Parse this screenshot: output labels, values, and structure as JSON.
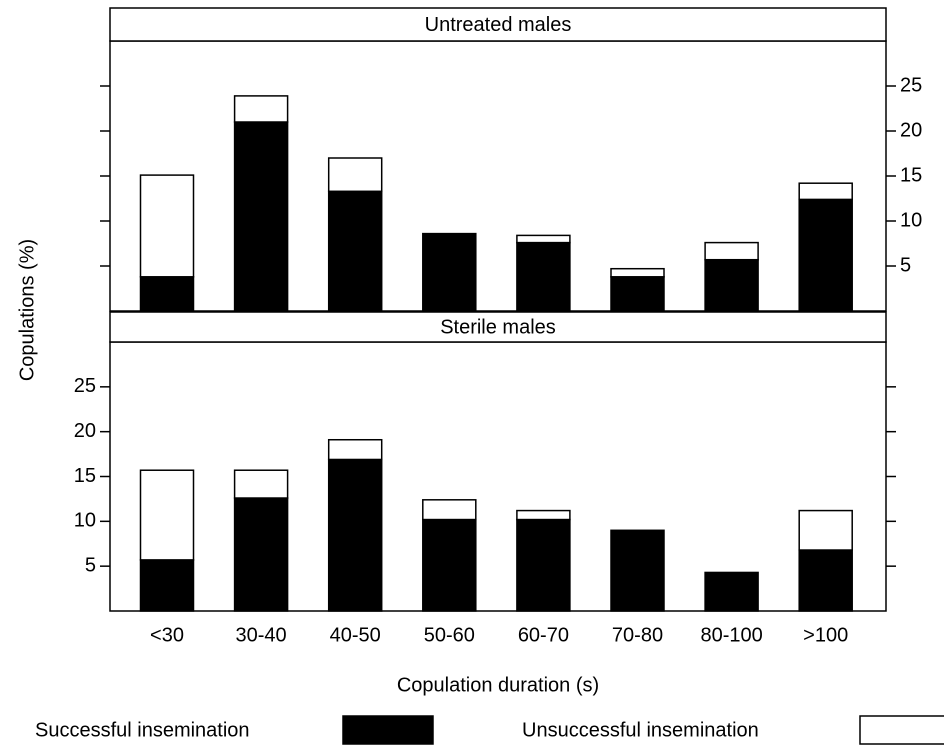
{
  "chart_data": [
    {
      "type": "bar",
      "stacked": true,
      "title": "Untreated males",
      "axis_side": "right",
      "ylim": [
        0,
        30
      ],
      "yticks": [
        5,
        10,
        15,
        20,
        25
      ],
      "series": [
        {
          "color": "#000000",
          "values": [
            3.8,
            21,
            13.3,
            8.6,
            7.6,
            3.8,
            5.7,
            12.4
          ]
        },
        {
          "color": "#ffffff",
          "values": [
            11.3,
            2.9,
            3.7,
            0,
            0.8,
            0.9,
            1.9,
            1.8
          ]
        }
      ]
    },
    {
      "type": "bar",
      "stacked": true,
      "title": "Sterile males",
      "axis_side": "left",
      "categories": [
        "<30",
        "30-40",
        "40-50",
        "50-60",
        "60-70",
        "70-80",
        "80-100",
        ">100"
      ],
      "ylim": [
        0,
        30
      ],
      "yticks": [
        5,
        10,
        15,
        20,
        25
      ],
      "xlabel": "Copulation duration (s)",
      "ylabel": "Copulations (%)",
      "series": [
        {
          "name": "Successful insemination",
          "color": "#000000",
          "values": [
            5.7,
            12.6,
            16.9,
            10.2,
            10.2,
            9.0,
            4.3,
            6.8
          ]
        },
        {
          "name": "Unsuccessful insemination",
          "color": "#ffffff",
          "values": [
            10,
            3.1,
            2.2,
            2.2,
            1.0,
            0,
            0,
            4.4
          ]
        }
      ]
    }
  ]
}
